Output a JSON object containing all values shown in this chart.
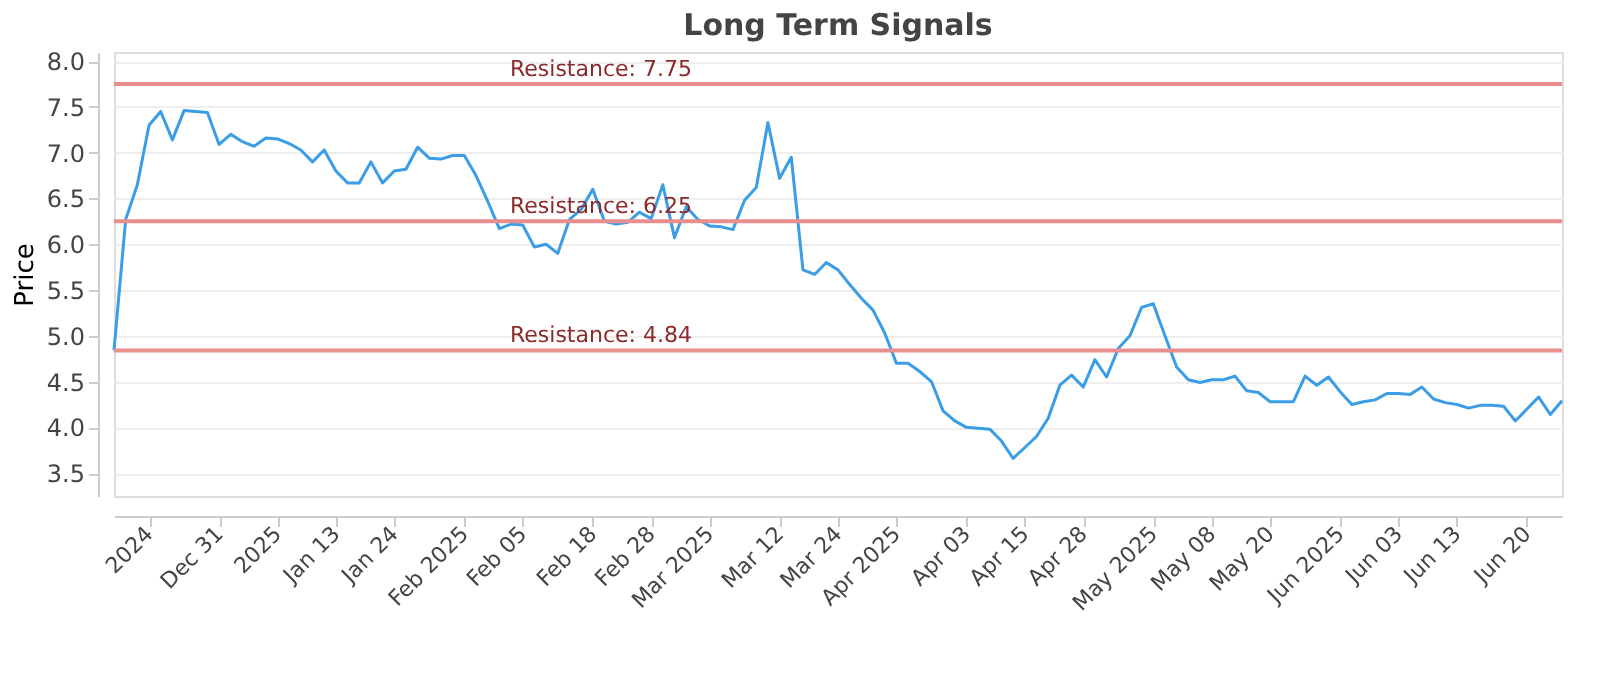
{
  "chart_data": {
    "type": "line",
    "title": "Long Term Signals",
    "ylabel": "Price",
    "categories": [
      null,
      null,
      null,
      "2024",
      null,
      null,
      null,
      null,
      null,
      "Dec 31",
      null,
      null,
      null,
      null,
      "2025",
      null,
      null,
      null,
      null,
      "Jan 13",
      null,
      null,
      null,
      null,
      "Jan 24",
      null,
      null,
      null,
      null,
      null,
      "Feb 2025",
      null,
      null,
      null,
      null,
      "Feb 05",
      null,
      null,
      null,
      null,
      null,
      "Feb 18",
      null,
      null,
      null,
      null,
      "Feb 28",
      null,
      null,
      null,
      null,
      "Mar 2025",
      null,
      null,
      null,
      null,
      null,
      "Mar 12",
      null,
      null,
      null,
      null,
      "Mar 24",
      null,
      null,
      null,
      null,
      "Apr 2025",
      null,
      null,
      null,
      null,
      null,
      "Apr 03",
      null,
      null,
      null,
      null,
      "Apr 15",
      null,
      null,
      null,
      null,
      "Apr 28",
      null,
      null,
      null,
      null,
      null,
      "May 2025",
      null,
      null,
      null,
      null,
      "May 08",
      null,
      null,
      null,
      null,
      "May 20",
      null,
      null,
      null,
      null,
      null,
      "Jun 2025",
      null,
      null,
      null,
      null,
      "Jun 03",
      null,
      null,
      null,
      null,
      "Jun 13",
      null,
      null,
      null,
      null,
      null,
      "Jun 20",
      null,
      null,
      null
    ],
    "series": [
      {
        "color": "#3a9de6",
        "values": [
          4.84,
          6.27,
          6.65,
          7.3,
          7.45,
          7.14,
          7.46,
          7.45,
          7.44,
          7.09,
          7.2,
          7.12,
          7.07,
          7.16,
          7.15,
          7.1,
          7.03,
          6.9,
          7.03,
          6.8,
          6.67,
          6.67,
          6.9,
          6.67,
          6.8,
          6.82,
          7.06,
          6.94,
          6.93,
          6.97,
          6.97,
          6.75,
          6.47,
          6.17,
          6.22,
          6.21,
          5.97,
          6.0,
          5.9,
          6.27,
          6.38,
          6.6,
          6.25,
          6.22,
          6.24,
          6.35,
          6.28,
          6.65,
          6.07,
          6.41,
          6.27,
          6.2,
          6.19,
          6.16,
          6.48,
          6.62,
          7.33,
          6.72,
          6.95,
          5.72,
          5.67,
          5.8,
          5.72,
          5.56,
          5.41,
          5.28,
          5.03,
          4.7,
          4.7,
          4.61,
          4.5,
          4.18,
          4.07,
          4.0,
          3.99,
          3.98,
          3.85,
          3.66,
          3.78,
          3.9,
          4.1,
          4.46,
          4.57,
          4.44,
          4.74,
          4.55,
          4.86,
          5.0,
          5.31,
          5.35,
          5.0,
          4.66,
          4.52,
          4.49,
          4.52,
          4.52,
          4.56,
          4.4,
          4.38,
          4.28,
          4.28,
          4.28,
          4.56,
          4.46,
          4.55,
          4.39,
          4.25,
          4.28,
          4.3,
          4.37,
          4.37,
          4.36,
          4.44,
          4.31,
          4.27,
          4.25,
          4.21,
          4.24,
          4.24,
          4.23,
          4.07,
          4.2,
          4.33,
          4.14,
          4.29
        ]
      }
    ],
    "ylim": [
      3.25,
      8.1
    ],
    "yticks": [
      {
        "value": 3.5,
        "label": "3.5"
      },
      {
        "value": 4,
        "label": "4.0"
      },
      {
        "value": 4.5,
        "label": "4.5"
      },
      {
        "value": 5,
        "label": "5.0"
      },
      {
        "value": 5.5,
        "label": "5.5"
      },
      {
        "value": 6,
        "label": "6.0"
      },
      {
        "value": 6.5,
        "label": "6.5"
      },
      {
        "value": 7,
        "label": "7.0"
      },
      {
        "value": 7.5,
        "label": "7.5"
      },
      {
        "value": 8,
        "label": "8.0"
      }
    ],
    "grid": "y",
    "marker": "none",
    "line_style": "solid",
    "ref_lines": [
      {
        "axis": "y",
        "value": 7.75,
        "label": "Resistance: 7.75",
        "color": "#e88e8e"
      },
      {
        "axis": "y",
        "value": 6.25,
        "label": "Resistance: 6.25",
        "color": "#e88e8e"
      },
      {
        "axis": "y",
        "value": 4.84,
        "label": "Resistance: 4.84",
        "color": "#e88e8e"
      }
    ]
  }
}
